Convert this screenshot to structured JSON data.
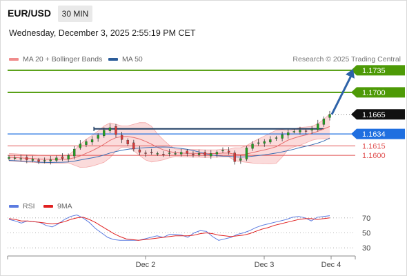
{
  "header": {
    "symbol": "EUR/USD",
    "timeframe": "30 MIN",
    "datetime": "Wednesday, December 3, 2025 2:55:19 PM CET"
  },
  "legend": {
    "bollinger": {
      "label": "MA 20 + Bollinger Bands",
      "color": "#f08c8c"
    },
    "ma50": {
      "label": "MA 50",
      "color": "#2c5d9a"
    },
    "credit": "Research © 2025 Trading Central"
  },
  "colors": {
    "up": "#22a022",
    "down": "#d63a3a",
    "target": "#4d9a06",
    "current": "#111111",
    "pivot": "#1f6fe0",
    "support": "#e05050",
    "arrow": "#2d62a8",
    "band": "#f9cfcf",
    "resistance_bar": "#1f3d63",
    "rsi": "#5b7be0",
    "rsi_ma": "#e02020"
  },
  "chart_data": [
    {
      "type": "candlestick",
      "title": "EUR/USD",
      "ylim": [
        1.154,
        1.176
      ],
      "x_ticks": [
        "Dec 2",
        "Dec 3",
        "Dec 4"
      ],
      "price_levels": [
        {
          "value": "1.1735",
          "kind": "target"
        },
        {
          "value": "1.1700",
          "kind": "target"
        },
        {
          "value": "1.1665",
          "kind": "current"
        },
        {
          "value": "1.1634",
          "kind": "pivot"
        },
        {
          "value": "1.1615",
          "kind": "support"
        },
        {
          "value": "1.1600",
          "kind": "support"
        }
      ],
      "resistance_line": 1.1642,
      "approx_closes": [
        1.1597,
        1.1596,
        1.1595,
        1.1593,
        1.1594,
        1.159,
        1.1592,
        1.1593,
        1.1596,
        1.1595,
        1.16,
        1.161,
        1.1618,
        1.1622,
        1.1625,
        1.1632,
        1.164,
        1.1644,
        1.1633,
        1.1625,
        1.1618,
        1.161,
        1.1605,
        1.1603,
        1.1604,
        1.1603,
        1.1602,
        1.1604,
        1.1603,
        1.1605,
        1.1603,
        1.1602,
        1.1603,
        1.16,
        1.1603,
        1.1605,
        1.1608,
        1.1605,
        1.159,
        1.1595,
        1.1612,
        1.1618,
        1.162,
        1.1622,
        1.1625,
        1.1628,
        1.1633,
        1.1636,
        1.1638,
        1.164,
        1.1638,
        1.1642,
        1.165,
        1.1658,
        1.1665
      ],
      "forecast_arrow": {
        "from": 1.1665,
        "to": 1.1735
      },
      "series": [
        {
          "name": "MA 20 + Bollinger Bands"
        },
        {
          "name": "MA 50"
        }
      ]
    },
    {
      "type": "line",
      "title": "RSI",
      "ylim": [
        20,
        80
      ],
      "y_ticks": [
        "70",
        "50",
        "30"
      ],
      "series": [
        {
          "name": "RSI",
          "values": [
            68,
            66,
            63,
            66,
            65,
            64,
            60,
            58,
            62,
            68,
            72,
            74,
            70,
            64,
            56,
            50,
            44,
            41,
            40,
            40,
            40,
            40,
            42,
            44,
            46,
            44,
            48,
            48,
            47,
            44,
            50,
            53,
            52,
            45,
            40,
            42,
            44,
            48,
            50,
            53,
            57,
            60,
            62,
            64,
            66,
            68,
            71,
            72,
            70,
            66,
            71,
            72,
            73
          ]
        },
        {
          "name": "9MA",
          "values": [
            69,
            68,
            66,
            66,
            65,
            64,
            63,
            62,
            63,
            65,
            68,
            70,
            71,
            68,
            64,
            59,
            54,
            49,
            45,
            42,
            41,
            40,
            41,
            42,
            43,
            44,
            45,
            46,
            46,
            46,
            47,
            49,
            50,
            49,
            47,
            46,
            45,
            46,
            47,
            49,
            52,
            55,
            57,
            60,
            62,
            64,
            66,
            68,
            69,
            69,
            68,
            69,
            70
          ]
        }
      ]
    }
  ]
}
